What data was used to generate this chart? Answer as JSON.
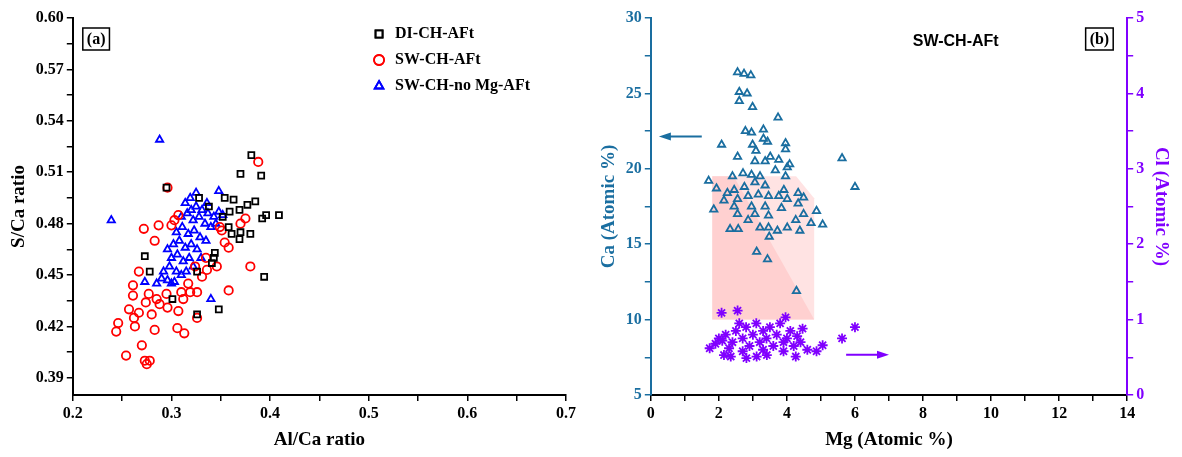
{
  "chart_data": [
    {
      "type": "scatter",
      "xlabel": "Al/Ca ratio",
      "ylabel": "S/Ca ratio",
      "annotations": [
        "(a)"
      ],
      "legend": "top right",
      "grid": false,
      "xlim": [
        0.2,
        0.7
      ],
      "xticks": [
        0.2,
        {
          "value": 0.25,
          "label": null
        },
        0.3,
        {
          "value": 0.35,
          "label": null
        },
        0.4,
        {
          "value": 0.45,
          "label": null
        },
        0.5,
        {
          "value": 0.55,
          "label": null
        },
        0.6,
        {
          "value": 0.65,
          "label": null
        },
        0.7
      ],
      "ylim": [
        0.38,
        0.6
      ],
      "yticks": [
        0.39,
        {
          "value": 0.405,
          "label": null
        },
        0.42,
        {
          "value": 0.435,
          "label": null
        },
        0.45,
        {
          "value": 0.465,
          "label": null
        },
        0.48,
        {
          "value": 0.495,
          "label": null
        },
        0.51,
        {
          "value": 0.525,
          "label": null
        },
        0.54,
        {
          "value": 0.555,
          "label": null
        },
        0.57,
        {
          "value": 0.585,
          "label": null
        },
        {
          "value": 0.6,
          "label": "0.60"
        }
      ],
      "series": [
        {
          "name": "DI-CH-AFt",
          "color": "#000000",
          "marker": "square",
          "x": [
            0.381,
            0.37,
            0.391,
            0.295,
            0.328,
            0.354,
            0.363,
            0.385,
            0.377,
            0.369,
            0.359,
            0.409,
            0.396,
            0.392,
            0.358,
            0.361,
            0.37,
            0.38,
            0.369,
            0.343,
            0.344,
            0.273,
            0.278,
            0.394,
            0.301,
            0.348,
            0.326,
            0.341,
            0.326,
            0.352,
            0.338
          ],
          "values": [
            0.52,
            0.509,
            0.508,
            0.501,
            0.495,
            0.495,
            0.494,
            0.493,
            0.491,
            0.488,
            0.487,
            0.485,
            0.485,
            0.483,
            0.478,
            0.474,
            0.475,
            0.474,
            0.471,
            0.46,
            0.463,
            0.461,
            0.452,
            0.449,
            0.436,
            0.43,
            0.427,
            0.457,
            0.452,
            0.484,
            0.49
          ]
        },
        {
          "name": "SW-CH-AFt",
          "color": "#ff0000",
          "marker": "circle",
          "x": [
            0.388,
            0.296,
            0.272,
            0.287,
            0.283,
            0.37,
            0.375,
            0.38,
            0.358,
            0.267,
            0.261,
            0.261,
            0.257,
            0.267,
            0.262,
            0.246,
            0.244,
            0.263,
            0.28,
            0.283,
            0.27,
            0.254,
            0.273,
            0.278,
            0.275,
            0.306,
            0.313,
            0.307,
            0.326,
            0.274,
            0.277,
            0.285,
            0.288,
            0.296,
            0.295,
            0.312,
            0.31,
            0.319,
            0.326,
            0.317,
            0.331,
            0.336,
            0.346,
            0.354,
            0.358,
            0.351,
            0.303,
            0.307,
            0.3,
            0.324,
            0.335,
            0.349
          ],
          "values": [
            0.516,
            0.501,
            0.477,
            0.479,
            0.47,
            0.48,
            0.483,
            0.455,
            0.441,
            0.452,
            0.444,
            0.438,
            0.43,
            0.428,
            0.425,
            0.422,
            0.417,
            0.42,
            0.427,
            0.418,
            0.409,
            0.403,
            0.4,
            0.4,
            0.398,
            0.419,
            0.416,
            0.429,
            0.425,
            0.434,
            0.439,
            0.436,
            0.433,
            0.431,
            0.439,
            0.436,
            0.44,
            0.44,
            0.44,
            0.445,
            0.449,
            0.453,
            0.455,
            0.469,
            0.466,
            0.476,
            0.482,
            0.485,
            0.479,
            0.455,
            0.46,
            0.478
          ]
        },
        {
          "name": "SW-CH-no Mg-AFt",
          "color": "#0000ff",
          "marker": "triangle",
          "x": [
            0.288,
            0.239,
            0.348,
            0.34,
            0.273,
            0.285,
            0.29,
            0.296,
            0.3,
            0.303,
            0.292,
            0.298,
            0.305,
            0.31,
            0.315,
            0.3,
            0.306,
            0.312,
            0.318,
            0.322,
            0.296,
            0.302,
            0.308,
            0.314,
            0.32,
            0.326,
            0.33,
            0.305,
            0.311,
            0.317,
            0.323,
            0.329,
            0.335,
            0.31,
            0.316,
            0.322,
            0.328,
            0.334,
            0.34,
            0.314,
            0.319,
            0.325,
            0.331,
            0.337,
            0.343,
            0.348,
            0.352,
            0.336,
            0.345,
            0.325,
            0.32
          ],
          "values": [
            0.529,
            0.482,
            0.499,
            0.436,
            0.446,
            0.445,
            0.448,
            0.447,
            0.445,
            0.446,
            0.452,
            0.455,
            0.452,
            0.45,
            0.452,
            0.46,
            0.462,
            0.458,
            0.46,
            0.455,
            0.465,
            0.468,
            0.47,
            0.466,
            0.468,
            0.465,
            0.46,
            0.475,
            0.478,
            0.474,
            0.476,
            0.472,
            0.47,
            0.484,
            0.486,
            0.482,
            0.484,
            0.48,
            0.478,
            0.492,
            0.495,
            0.49,
            0.488,
            0.486,
            0.484,
            0.487,
            0.485,
            0.492,
            0.48,
            0.498,
            0.488
          ]
        }
      ]
    },
    {
      "type": "scatter",
      "title": "SW-CH-AFt",
      "xlabel": "Mg (Atomic %)",
      "ylabel": "Ca (Atomic %)",
      "y2label": "Cl (Atomic %)",
      "annotations": [
        "(b)"
      ],
      "legend": false,
      "grid": false,
      "xlim": [
        0,
        14
      ],
      "xticks": [
        0,
        {
          "value": 1,
          "label": null
        },
        2,
        {
          "value": 3,
          "label": null
        },
        4,
        {
          "value": 5,
          "label": null
        },
        6,
        {
          "value": 7,
          "label": null
        },
        8,
        {
          "value": 9,
          "label": null
        },
        10,
        {
          "value": 11,
          "label": null
        },
        12,
        {
          "value": 13,
          "label": null
        },
        14
      ],
      "ylim": [
        5,
        30
      ],
      "yticks": [
        5,
        {
          "value": 7.5,
          "label": null
        },
        10,
        {
          "value": 12.5,
          "label": null
        },
        15,
        {
          "value": 17.5,
          "label": null
        },
        20,
        {
          "value": 22.5,
          "label": null
        },
        25,
        {
          "value": 27.5,
          "label": null
        },
        30
      ],
      "y2lim": [
        0,
        5
      ],
      "y2ticks": [
        0,
        {
          "value": 0.5,
          "label": null
        },
        1,
        {
          "value": 1.5,
          "label": null
        },
        2,
        {
          "value": 2.5,
          "label": null
        },
        3,
        {
          "value": 3.5,
          "label": null
        },
        4,
        {
          "value": 4.5,
          "label": null
        },
        5
      ],
      "series": [
        {
          "color": "#1a6ea0",
          "marker": "triangle",
          "x": [
            2.55,
            2.74,
            2.94,
            2.6,
            2.83,
            2.6,
            2.99,
            3.74,
            2.78,
            2.96,
            3.31,
            3.31,
            3.43,
            3.96,
            3.96,
            2.08,
            2.99,
            3.09,
            2.55,
            3.51,
            3.76,
            3.06,
            3.36,
            4.08,
            5.62,
            6.0,
            1.7,
            3.66,
            4.01,
            2.71,
            2.96,
            3.21,
            2.4,
            3.96,
            1.93,
            2.25,
            2.45,
            2.75,
            3.06,
            3.36,
            3.91,
            4.33,
            4.49,
            2.15,
            2.55,
            2.86,
            3.16,
            3.46,
            3.76,
            4.01,
            1.85,
            2.45,
            2.96,
            3.36,
            3.84,
            4.33,
            4.87,
            4.49,
            2.55,
            3.06,
            3.46,
            4.26,
            4.71,
            5.05,
            2.33,
            2.57,
            2.86,
            3.21,
            3.46,
            3.72,
            4.01,
            4.38,
            3.48,
            3.11,
            3.43,
            4.28
          ],
          "values": [
            26.4,
            26.3,
            26.2,
            25.1,
            25.0,
            24.5,
            24.1,
            23.4,
            22.5,
            22.4,
            22.6,
            22.0,
            21.8,
            21.7,
            21.3,
            21.6,
            21.6,
            21.2,
            20.8,
            20.8,
            20.6,
            20.5,
            20.5,
            20.3,
            20.7,
            18.8,
            19.2,
            19.9,
            20.1,
            19.7,
            19.6,
            19.5,
            19.5,
            19.5,
            18.7,
            18.4,
            18.6,
            18.8,
            19.1,
            18.9,
            18.6,
            18.4,
            18.1,
            17.9,
            18.0,
            18.2,
            18.3,
            18.2,
            18.2,
            18.0,
            17.3,
            17.5,
            17.5,
            17.5,
            17.4,
            17.7,
            17.2,
            17.0,
            17.0,
            17.0,
            16.9,
            16.6,
            16.4,
            16.3,
            16.0,
            16.0,
            16.6,
            16.1,
            16.1,
            15.9,
            16.1,
            15.9,
            15.5,
            14.5,
            14.0,
            11.9
          ]
        },
        {
          "color": "#8000ff",
          "marker": "cross",
          "axis": "y2",
          "x": [
            2.08,
            2.55,
            3.96,
            4.46,
            5.62,
            6.0,
            5.05,
            4.87,
            1.73,
            2.15,
            2.81,
            3.11,
            3.41,
            4.26,
            2.35,
            2.0,
            2.2,
            2.4,
            2.5,
            2.6,
            2.7,
            2.8,
            2.9,
            3.0,
            3.1,
            3.2,
            3.3,
            3.4,
            3.5,
            3.6,
            3.7,
            3.8,
            3.9,
            4.0,
            4.1,
            4.2,
            4.4,
            4.6,
            2.3,
            2.7,
            3.3,
            3.9,
            1.9,
            2.1,
            4.3
          ],
          "values": [
            1.09,
            1.12,
            1.03,
            0.88,
            0.75,
            0.9,
            0.66,
            0.58,
            0.62,
            0.53,
            0.49,
            0.51,
            0.53,
            0.51,
            0.51,
            0.75,
            0.8,
            0.7,
            0.85,
            0.95,
            0.75,
            0.9,
            0.65,
            0.8,
            0.95,
            0.7,
            0.85,
            0.75,
            0.9,
            0.65,
            0.8,
            0.95,
            0.7,
            0.75,
            0.85,
            0.65,
            0.7,
            0.6,
            0.62,
            0.58,
            0.6,
            0.58,
            0.68,
            0.72,
            0.78
          ]
        }
      ]
    }
  ]
}
